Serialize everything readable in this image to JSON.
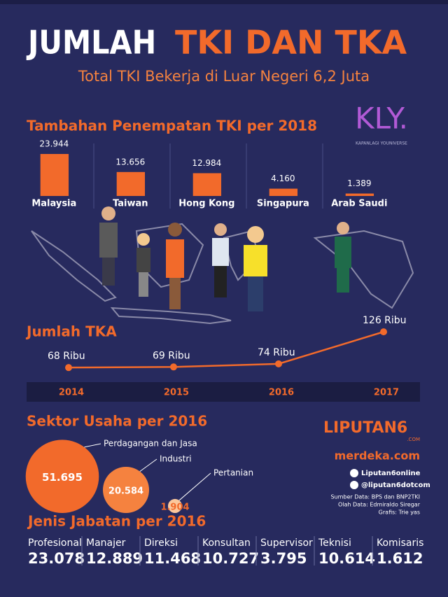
{
  "header": {
    "title_white": "JUMLAH",
    "title_orange": "TKI DAN TKA",
    "subtitle": "Total TKI Bekerja di Luar Negeri 6,2 Juta"
  },
  "logos": {
    "kly": "KLY.",
    "kly_tagline": "KAPANLAGI YOUNIVERSE",
    "liputan6": "LIPUTAN6",
    "liputan6_com": ".COM",
    "merdeka": "merdeka.com"
  },
  "social": {
    "facebook": "Liputan6online",
    "twitter": "@liputan6dotcom"
  },
  "credits": [
    "Sumber Data: BPS dan BNP2TKI",
    "Olah Data: Edmiraldo Siregar",
    "Grafis: Trie yas"
  ],
  "chart_data": [
    {
      "type": "bar",
      "title": "Tambahan Penempatan TKI per 2018",
      "categories": [
        "Malaysia",
        "Taiwan",
        "Hong Kong",
        "Singapura",
        "Arab Saudi"
      ],
      "values": [
        23944,
        13656,
        12984,
        4160,
        1389
      ],
      "value_labels": [
        "23.944",
        "13.656",
        "12.984",
        "4.160",
        "1.389"
      ],
      "color": "#f26a2b"
    },
    {
      "type": "line",
      "title": "Jumlah TKA",
      "categories": [
        "2014",
        "2015",
        "2016",
        "2017"
      ],
      "values": [
        68,
        69,
        74,
        126
      ],
      "value_labels": [
        "68 Ribu",
        "69 Ribu",
        "74 Ribu",
        "126 Ribu"
      ],
      "color": "#f26a2b"
    },
    {
      "type": "bubble",
      "title": "Sektor Usaha per 2016",
      "categories": [
        "Perdagangan dan Jasa",
        "Industri",
        "Pertanian"
      ],
      "values": [
        51695,
        20584,
        1904
      ],
      "value_labels": [
        "51.695",
        "20.584",
        "1.904"
      ],
      "colors": [
        "#f26a2b",
        "#f5823f",
        "#fbc79c"
      ]
    }
  ],
  "jabatan": {
    "title": "Jenis Jabatan per 2016",
    "items": [
      {
        "label": "Profesional",
        "value": "23.078"
      },
      {
        "label": "Manajer",
        "value": "12.889"
      },
      {
        "label": "Direksi",
        "value": "11.468"
      },
      {
        "label": "Konsultan",
        "value": "10.727"
      },
      {
        "label": "Supervisor",
        "value": "3.795"
      },
      {
        "label": "Teknisi",
        "value": "10.614"
      },
      {
        "label": "Komisaris",
        "value": "1.612"
      }
    ]
  }
}
